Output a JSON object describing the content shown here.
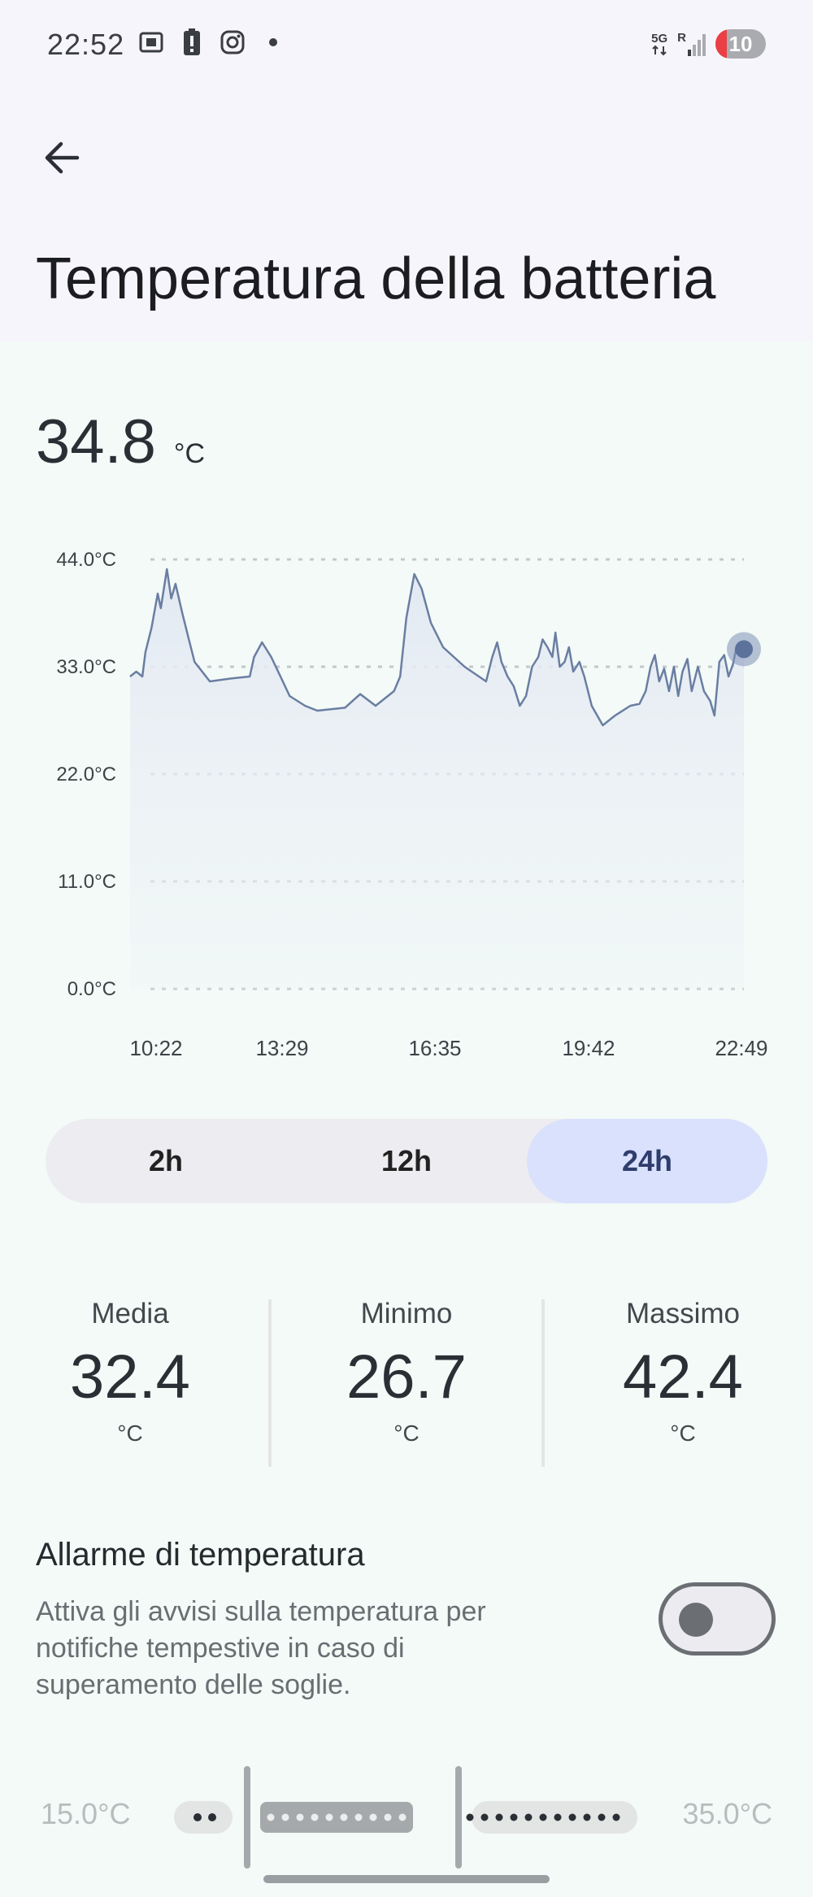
{
  "status_bar": {
    "time": "22:52",
    "left_icons": [
      "screenshot-icon",
      "battery-alert-icon",
      "instagram-icon",
      "dot-icon"
    ],
    "network_label_top": "5G",
    "network_label_2": "R",
    "battery_level": "10"
  },
  "header": {
    "back_icon": "arrow-left-icon",
    "title": "Temperatura della batteria"
  },
  "current": {
    "value": "34.8",
    "unit": "°C"
  },
  "chart_data": {
    "type": "line",
    "ytick_labels": [
      "44.0°C",
      "33.0°C",
      "22.0°C",
      "11.0°C",
      "0.0°C"
    ],
    "yticks": [
      44,
      33,
      22,
      11,
      0
    ],
    "ylim": [
      0,
      44
    ],
    "xtick_labels": [
      "10:22",
      "13:29",
      "16:35",
      "19:42",
      "22:49"
    ],
    "xlim": [
      0,
      1
    ],
    "grid": "dashed horizontal",
    "line_color": "#6a7ea2",
    "fill_color": "#e6ecf3",
    "series": [
      {
        "points": [
          [
            0.0,
            32.0
          ],
          [
            0.01,
            32.5
          ],
          [
            0.02,
            32.0
          ],
          [
            0.025,
            34.5
          ],
          [
            0.035,
            37.0
          ],
          [
            0.045,
            40.5
          ],
          [
            0.05,
            39.0
          ],
          [
            0.06,
            43.0
          ],
          [
            0.067,
            40.0
          ],
          [
            0.074,
            41.5
          ],
          [
            0.085,
            38.5
          ],
          [
            0.095,
            36.0
          ],
          [
            0.105,
            33.5
          ],
          [
            0.13,
            31.5
          ],
          [
            0.165,
            31.8
          ],
          [
            0.195,
            32.0
          ],
          [
            0.202,
            34.0
          ],
          [
            0.215,
            35.5
          ],
          [
            0.23,
            34.0
          ],
          [
            0.245,
            32.0
          ],
          [
            0.26,
            30.0
          ],
          [
            0.285,
            29.0
          ],
          [
            0.305,
            28.5
          ],
          [
            0.35,
            28.8
          ],
          [
            0.375,
            30.2
          ],
          [
            0.4,
            29.0
          ],
          [
            0.43,
            30.5
          ],
          [
            0.44,
            32.0
          ],
          [
            0.45,
            38.0
          ],
          [
            0.463,
            42.5
          ],
          [
            0.475,
            41.0
          ],
          [
            0.49,
            37.5
          ],
          [
            0.51,
            35.0
          ],
          [
            0.545,
            33.0
          ],
          [
            0.58,
            31.5
          ],
          [
            0.59,
            34.0
          ],
          [
            0.598,
            35.5
          ],
          [
            0.605,
            33.5
          ],
          [
            0.615,
            32.0
          ],
          [
            0.625,
            31.0
          ],
          [
            0.635,
            29.0
          ],
          [
            0.645,
            30.0
          ],
          [
            0.655,
            33.0
          ],
          [
            0.665,
            34.0
          ],
          [
            0.672,
            35.8
          ],
          [
            0.68,
            35.0
          ],
          [
            0.688,
            34.0
          ],
          [
            0.693,
            36.5
          ],
          [
            0.7,
            33.0
          ],
          [
            0.708,
            33.5
          ],
          [
            0.715,
            35.0
          ],
          [
            0.722,
            32.5
          ],
          [
            0.732,
            33.5
          ],
          [
            0.74,
            32.0
          ],
          [
            0.752,
            29.0
          ],
          [
            0.77,
            27.0
          ],
          [
            0.79,
            28.0
          ],
          [
            0.815,
            29.0
          ],
          [
            0.83,
            29.2
          ],
          [
            0.84,
            30.5
          ],
          [
            0.848,
            33.0
          ],
          [
            0.855,
            34.2
          ],
          [
            0.862,
            31.5
          ],
          [
            0.87,
            32.8
          ],
          [
            0.878,
            30.5
          ],
          [
            0.886,
            33.0
          ],
          [
            0.893,
            30.0
          ],
          [
            0.9,
            32.5
          ],
          [
            0.908,
            33.8
          ],
          [
            0.915,
            30.5
          ],
          [
            0.925,
            33.0
          ],
          [
            0.935,
            30.5
          ],
          [
            0.945,
            29.5
          ],
          [
            0.952,
            28.0
          ],
          [
            0.96,
            33.5
          ],
          [
            0.968,
            34.2
          ],
          [
            0.975,
            32.0
          ],
          [
            0.982,
            33.2
          ],
          [
            0.988,
            35.0
          ],
          [
            0.995,
            34.8
          ],
          [
            1.0,
            34.8
          ]
        ]
      }
    ]
  },
  "range_selector": {
    "options": [
      "2h",
      "12h",
      "24h"
    ],
    "selected": "24h"
  },
  "stats": {
    "mean_label": "Media",
    "mean_value": "32.4",
    "min_label": "Minimo",
    "min_value": "26.7",
    "max_label": "Massimo",
    "max_value": "42.4",
    "unit": "°C"
  },
  "alarm": {
    "title": "Allarme di temperatura",
    "description": "Attiva gli avvisi sulla temperatura per notifiche tempestive in caso di superamento delle soglie.",
    "enabled": false
  },
  "threshold": {
    "min_label": "15.0°C",
    "max_label": "35.0°C"
  },
  "colors": {
    "background": "#f3faf7",
    "header_bg": "#f7f5fc",
    "selected_segment": "#d9e1fd",
    "chart_line": "#6a7ea2"
  }
}
